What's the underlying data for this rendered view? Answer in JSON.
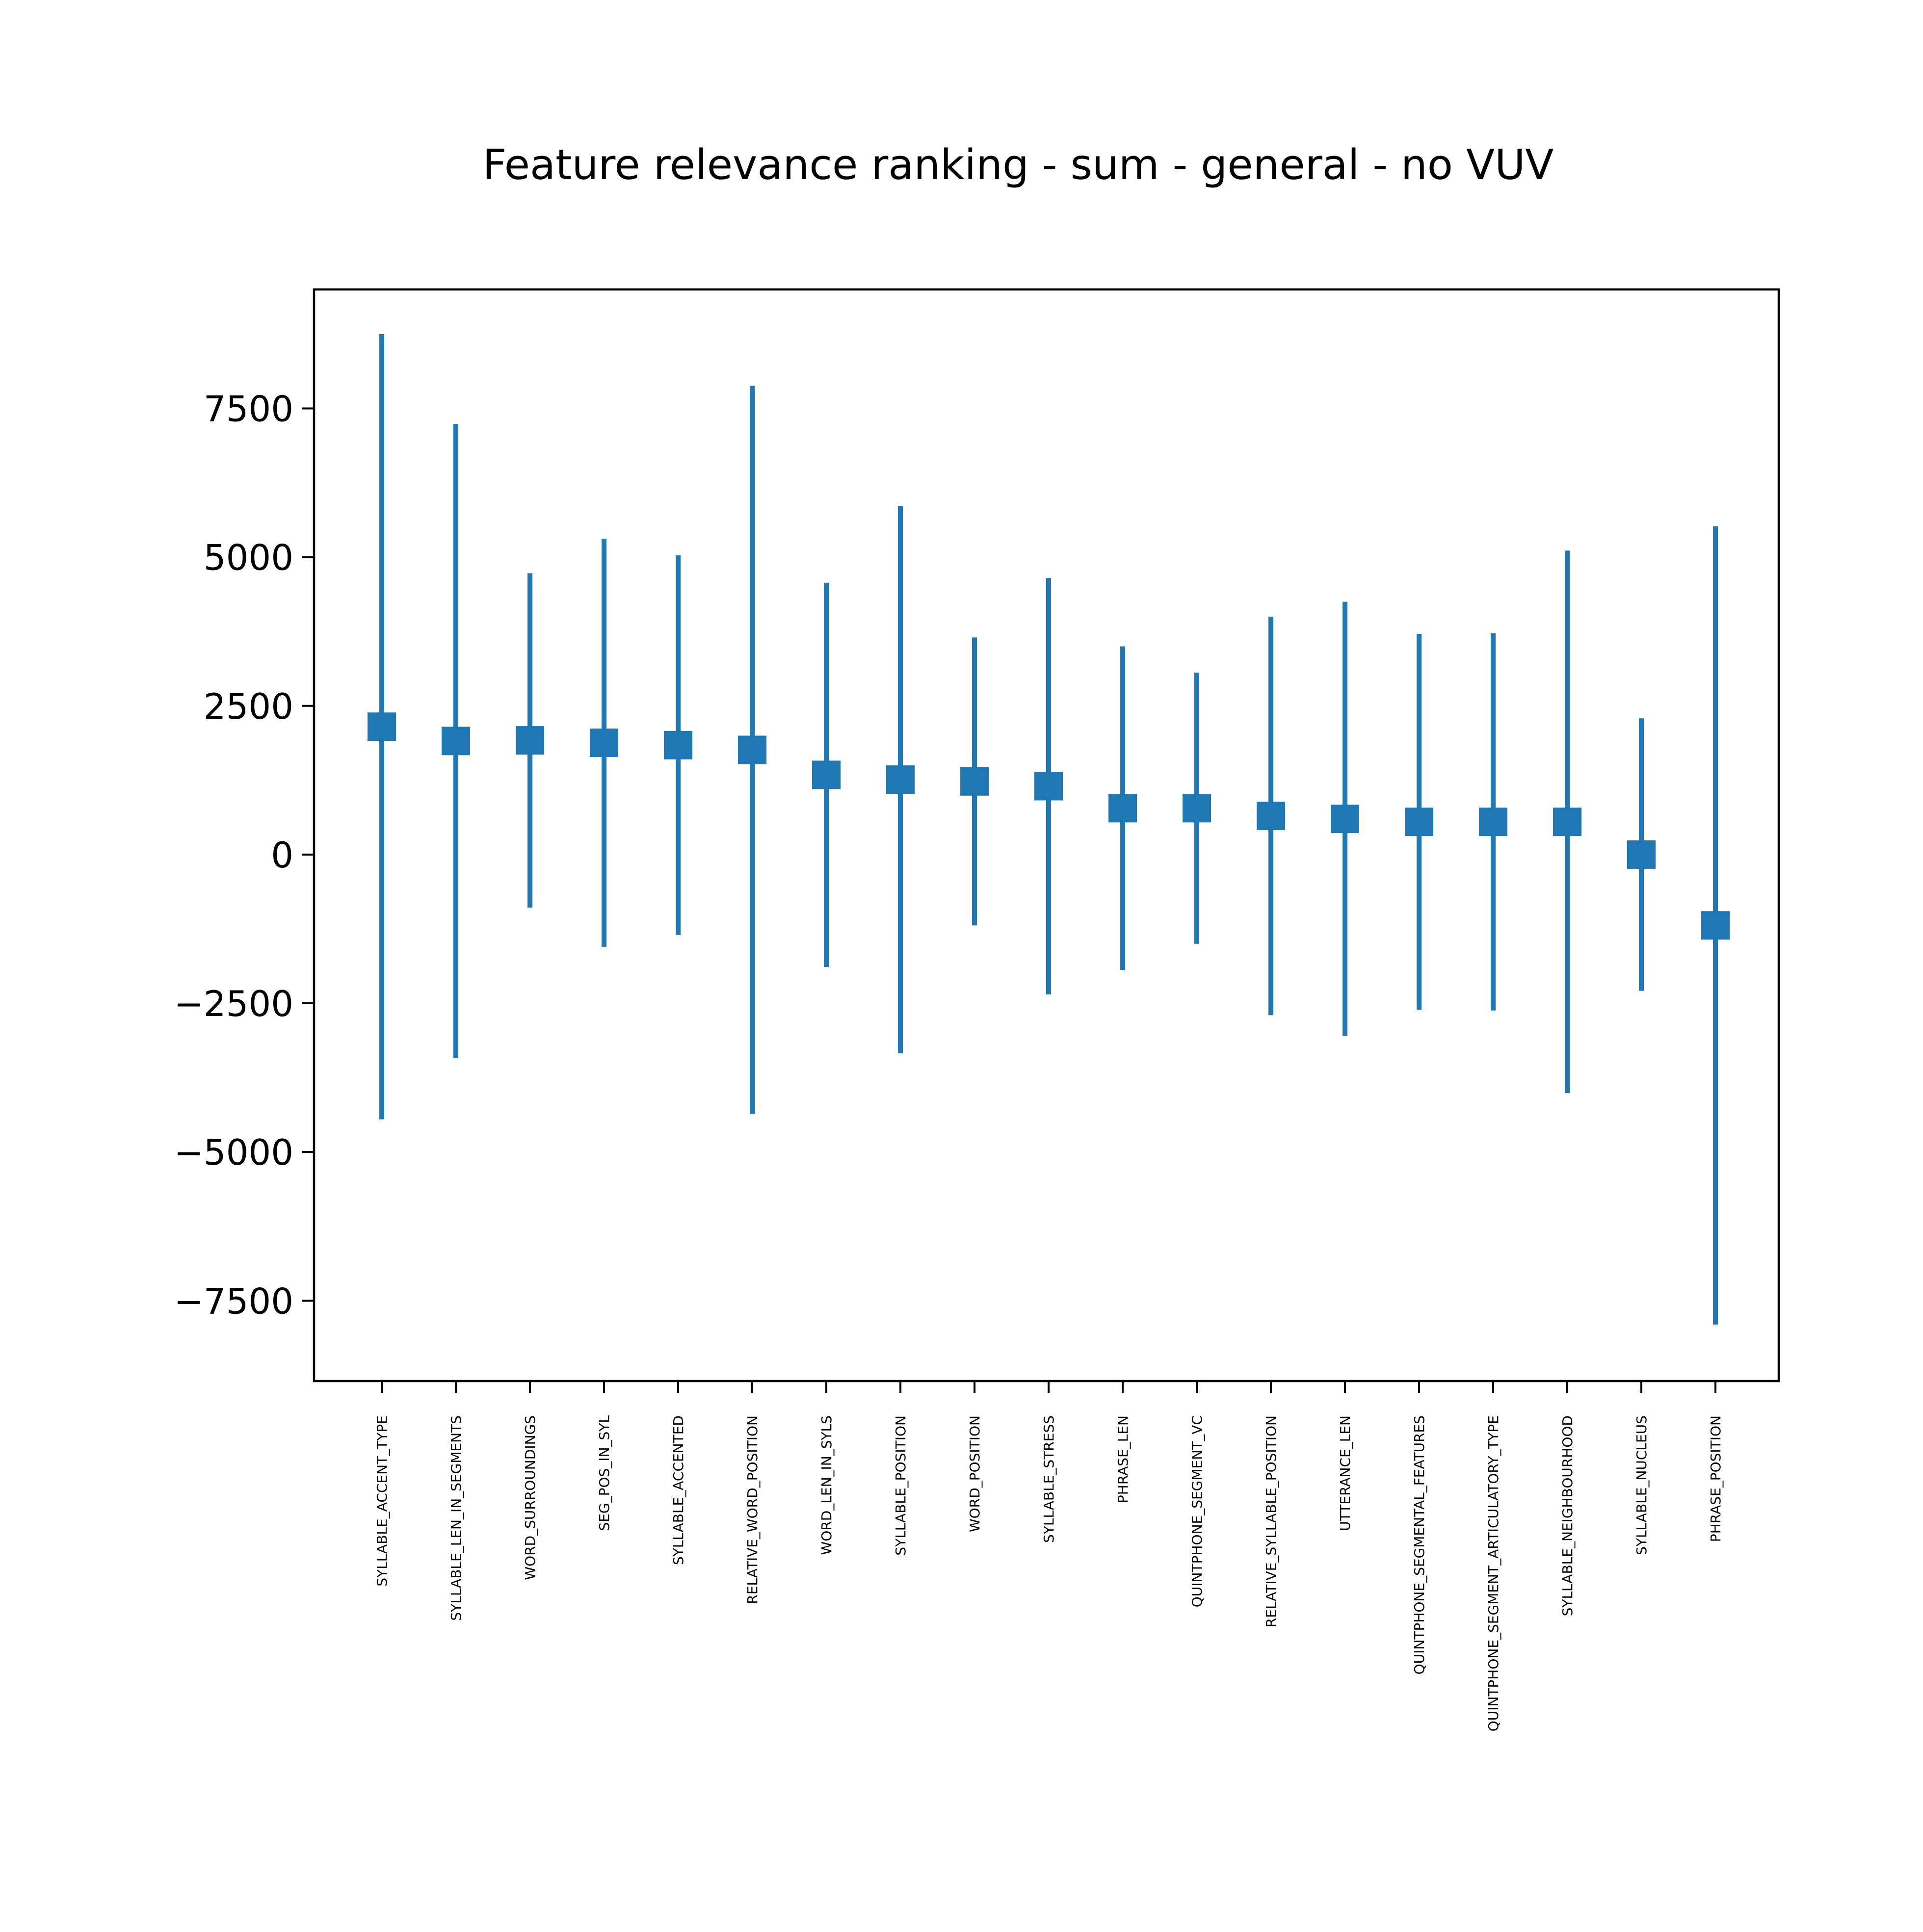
{
  "chart_data": {
    "type": "errorbar",
    "title": "Feature relevance ranking - sum - general - no VUV",
    "xlabel": "",
    "ylabel": "",
    "ylim": [
      -8850,
      9500
    ],
    "y_ticks": [
      7500,
      5000,
      2500,
      0,
      -2500,
      -5000,
      -7500
    ],
    "y_tick_labels": [
      "7500",
      "5000",
      "2500",
      "0",
      "−2500",
      "−5000",
      "−7500"
    ],
    "grid": false,
    "legend": "none",
    "color": "#1f77b4",
    "categories": [
      "SYLLABLE_ACCENT_TYPE",
      "SYLLABLE_LEN_IN_SEGMENTS",
      "WORD_SURROUNDINGS",
      "SEG_POS_IN_SYL",
      "SYLLABLE_ACCENTED",
      "RELATIVE_WORD_POSITION",
      "WORD_LEN_IN_SYLS",
      "SYLLABLE_POSITION",
      "WORD_POSITION",
      "SYLLABLE_STRESS",
      "PHRASE_LEN",
      "QUINTPHONE_SEGMENT_VC",
      "RELATIVE_SYLLABLE_POSITION",
      "UTTERANCE_LEN",
      "QUINTPHONE_SEGMENTAL_FEATURES",
      "QUINTPHONE_SEGMENT_ARTICULATORY_TYPE",
      "SYLLABLE_NEIGHBOURHOOD",
      "SYLLABLE_NUCLEUS",
      "PHRASE_POSITION"
    ],
    "values": [
      2150,
      1910,
      1920,
      1880,
      1840,
      1760,
      1340,
      1260,
      1230,
      1150,
      780,
      780,
      650,
      600,
      550,
      550,
      550,
      0,
      -1190
    ],
    "errors": [
      6600,
      5330,
      2810,
      3430,
      3190,
      6120,
      3230,
      4600,
      2420,
      3500,
      2720,
      2280,
      3350,
      3650,
      3160,
      3170,
      4560,
      2290,
      6710
    ]
  }
}
